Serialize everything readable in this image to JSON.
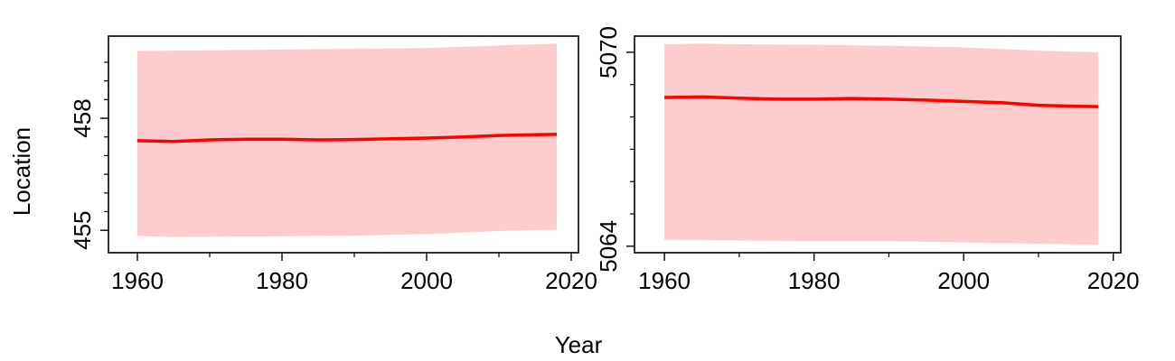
{
  "ylabel": "Location",
  "xlabel": "Year",
  "colors": {
    "line": "#ff0000",
    "band": "#fdcccc",
    "axis": "#000000"
  },
  "chart_data": [
    {
      "type": "line",
      "title": "",
      "xlim": [
        1956,
        2021
      ],
      "ylim": [
        454.4,
        460.2
      ],
      "x_ticks": [
        1960,
        1980,
        2000,
        2020
      ],
      "x_tick_labels": [
        "1960",
        "1980",
        "2000",
        "2020"
      ],
      "x_minor_ticks": [
        1970,
        1990,
        2010
      ],
      "y_ticks": [
        455,
        458
      ],
      "y_tick_labels": [
        "455",
        "458"
      ],
      "y_minor_ticks": [
        455.5,
        456,
        456.5,
        457,
        457.5,
        458.5,
        459,
        459.5
      ],
      "series": [
        {
          "name": "estimate",
          "x": [
            1960,
            1965,
            1970,
            1975,
            1980,
            1985,
            1990,
            1995,
            2000,
            2005,
            2010,
            2015,
            2018
          ],
          "values": [
            457.4,
            457.38,
            457.42,
            457.44,
            457.44,
            457.42,
            457.43,
            457.45,
            457.47,
            457.5,
            457.54,
            457.56,
            457.57
          ]
        },
        {
          "name": "lower",
          "x": [
            1960,
            1965,
            1970,
            1980,
            1990,
            2000,
            2010,
            2018
          ],
          "values": [
            454.85,
            454.82,
            454.83,
            454.84,
            454.86,
            454.9,
            454.98,
            455.02
          ]
        },
        {
          "name": "upper",
          "x": [
            1960,
            1970,
            1980,
            1990,
            2000,
            2010,
            2018
          ],
          "values": [
            459.8,
            459.82,
            459.84,
            459.86,
            459.88,
            459.95,
            460.0
          ]
        }
      ]
    },
    {
      "type": "line",
      "title": "",
      "xlim": [
        1956,
        2021
      ],
      "ylim": [
        5063.8,
        5070.5
      ],
      "x_ticks": [
        1960,
        1980,
        2000,
        2020
      ],
      "x_tick_labels": [
        "1960",
        "1980",
        "2000",
        "2020"
      ],
      "x_minor_ticks": [
        1970,
        1990,
        2010
      ],
      "y_ticks": [
        5064,
        5070
      ],
      "y_tick_labels": [
        "5064",
        "5070"
      ],
      "y_minor_ticks": [
        5065,
        5066,
        5067,
        5068,
        5069
      ],
      "series": [
        {
          "name": "estimate",
          "x": [
            1960,
            1965,
            1970,
            1975,
            1980,
            1985,
            1990,
            1995,
            2000,
            2005,
            2010,
            2015,
            2018
          ],
          "values": [
            5068.6,
            5068.62,
            5068.58,
            5068.55,
            5068.55,
            5068.57,
            5068.55,
            5068.52,
            5068.48,
            5068.44,
            5068.36,
            5068.33,
            5068.32
          ]
        },
        {
          "name": "lower",
          "x": [
            1960,
            1970,
            1980,
            1990,
            2000,
            2010,
            2018
          ],
          "values": [
            5064.2,
            5064.18,
            5064.16,
            5064.16,
            5064.12,
            5064.08,
            5064.05
          ]
        },
        {
          "name": "upper",
          "x": [
            1960,
            1965,
            1970,
            1980,
            1990,
            2000,
            2010,
            2018
          ],
          "values": [
            5070.25,
            5070.27,
            5070.25,
            5070.23,
            5070.2,
            5070.15,
            5070.05,
            5070.0
          ]
        }
      ]
    }
  ]
}
